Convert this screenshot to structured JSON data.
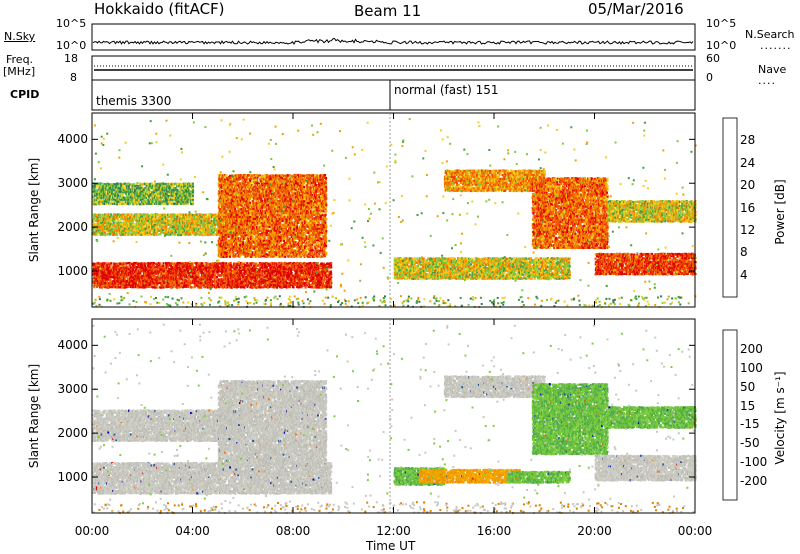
{
  "header": {
    "station": "Hokkaido (fitACF)",
    "beam": "Beam 11",
    "date": "05/Mar/2016"
  },
  "status_panel": {
    "nsky_label": "N.Sky",
    "nsearch_label": "N.Search",
    "noise_ticks_left": [
      "10^5",
      "10^0"
    ],
    "noise_ticks_right": [
      "10^5",
      "10^0"
    ],
    "freq_label_1": "Freq.",
    "freq_label_2": "[MHz]",
    "freq_ticks": [
      "18",
      "8"
    ],
    "nave_label": "Nave",
    "nave_ticks": [
      "60",
      "0"
    ],
    "cpid_label": "CPID",
    "cpid_segments": [
      {
        "name": "themis 3300",
        "start_hour": 0,
        "end_hour": 12
      },
      {
        "name": "normal (fast) 151",
        "start_hour": 12,
        "end_hour": 24
      }
    ]
  },
  "chart_data": [
    {
      "type": "heatmap",
      "parameter": "Power",
      "xlabel": "Time UT",
      "ylabel": "Slant Range [km]",
      "x_range_hours": [
        0,
        24
      ],
      "x_ticks": [
        "00:00",
        "04:00",
        "08:00",
        "12:00",
        "16:00",
        "20:00",
        "00:00"
      ],
      "y_range_km": [
        180,
        4600
      ],
      "y_ticks": [
        1000,
        2000,
        3000,
        4000
      ],
      "colorbar": {
        "label": "Power [dB]",
        "ticks": [
          "28",
          "24",
          "20",
          "16",
          "12",
          "8",
          "4"
        ],
        "colors": [
          "#0000ff",
          "#1f4fa0",
          "#2e7d5a",
          "#3f9f3f",
          "#7fc93f",
          "#f0d020",
          "#f5a000",
          "#f07000",
          "#f04000",
          "#e00000"
        ]
      },
      "regions": [
        {
          "t0": 0.0,
          "t1": 9.5,
          "r0": 600,
          "r1": 1200,
          "intensity": 0.95
        },
        {
          "t0": 0.0,
          "t1": 6.0,
          "r0": 1800,
          "r1": 2300,
          "intensity": 0.55
        },
        {
          "t0": 0.0,
          "t1": 4.0,
          "r0": 2500,
          "r1": 3000,
          "intensity": 0.4
        },
        {
          "t0": 5.0,
          "t1": 9.3,
          "r0": 1300,
          "r1": 3200,
          "intensity": 0.8
        },
        {
          "t0": 12.0,
          "t1": 19.0,
          "r0": 800,
          "r1": 1300,
          "intensity": 0.55
        },
        {
          "t0": 14.0,
          "t1": 18.0,
          "r0": 2800,
          "r1": 3300,
          "intensity": 0.7
        },
        {
          "t0": 17.5,
          "t1": 20.5,
          "r0": 1500,
          "r1": 3100,
          "intensity": 0.8
        },
        {
          "t0": 20.0,
          "t1": 24.0,
          "r0": 900,
          "r1": 1400,
          "intensity": 0.9
        },
        {
          "t0": 20.5,
          "t1": 24.0,
          "r0": 2100,
          "r1": 2600,
          "intensity": 0.55
        }
      ]
    },
    {
      "type": "heatmap",
      "parameter": "Velocity",
      "xlabel": "Time UT",
      "ylabel": "Slant Range [km]",
      "x_range_hours": [
        0,
        24
      ],
      "x_ticks": [
        "00:00",
        "04:00",
        "08:00",
        "12:00",
        "16:00",
        "20:00",
        "00:00"
      ],
      "y_range_km": [
        180,
        4600
      ],
      "y_ticks": [
        1000,
        2000,
        3000,
        4000
      ],
      "colorbar": {
        "label": "Velocity [m s⁻¹]",
        "ticks": [
          "200",
          "100",
          "50",
          "15",
          "-15",
          "-50",
          "-100",
          "-200"
        ],
        "colors": [
          "#e00000",
          "#f04000",
          "#f07000",
          "#f5a000",
          "#f0c000",
          "#c8c8c0",
          "#c8c8c0",
          "#7fd040",
          "#4fa84f",
          "#2e7d5a",
          "#1f4fa0",
          "#0000c0"
        ]
      },
      "regions": [
        {
          "t0": 0.0,
          "t1": 9.5,
          "r0": 600,
          "r1": 1300,
          "value": "gray"
        },
        {
          "t0": 0.0,
          "t1": 6.0,
          "r0": 1800,
          "r1": 2500,
          "value": "gray"
        },
        {
          "t0": 5.0,
          "t1": 9.3,
          "r0": 1300,
          "r1": 3200,
          "value": "gray"
        },
        {
          "t0": 12.0,
          "t1": 14.0,
          "r0": 800,
          "r1": 1200,
          "value": "green"
        },
        {
          "t0": 13.0,
          "t1": 17.0,
          "r0": 850,
          "r1": 1150,
          "value": "orange"
        },
        {
          "t0": 16.5,
          "t1": 19.0,
          "r0": 850,
          "r1": 1100,
          "value": "green"
        },
        {
          "t0": 14.0,
          "t1": 18.0,
          "r0": 2800,
          "r1": 3300,
          "value": "gray"
        },
        {
          "t0": 17.5,
          "t1": 20.5,
          "r0": 1500,
          "r1": 3100,
          "value": "green"
        },
        {
          "t0": 20.0,
          "t1": 24.0,
          "r0": 900,
          "r1": 1500,
          "value": "gray"
        },
        {
          "t0": 20.5,
          "t1": 24.0,
          "r0": 2100,
          "r1": 2600,
          "value": "green"
        }
      ]
    }
  ]
}
